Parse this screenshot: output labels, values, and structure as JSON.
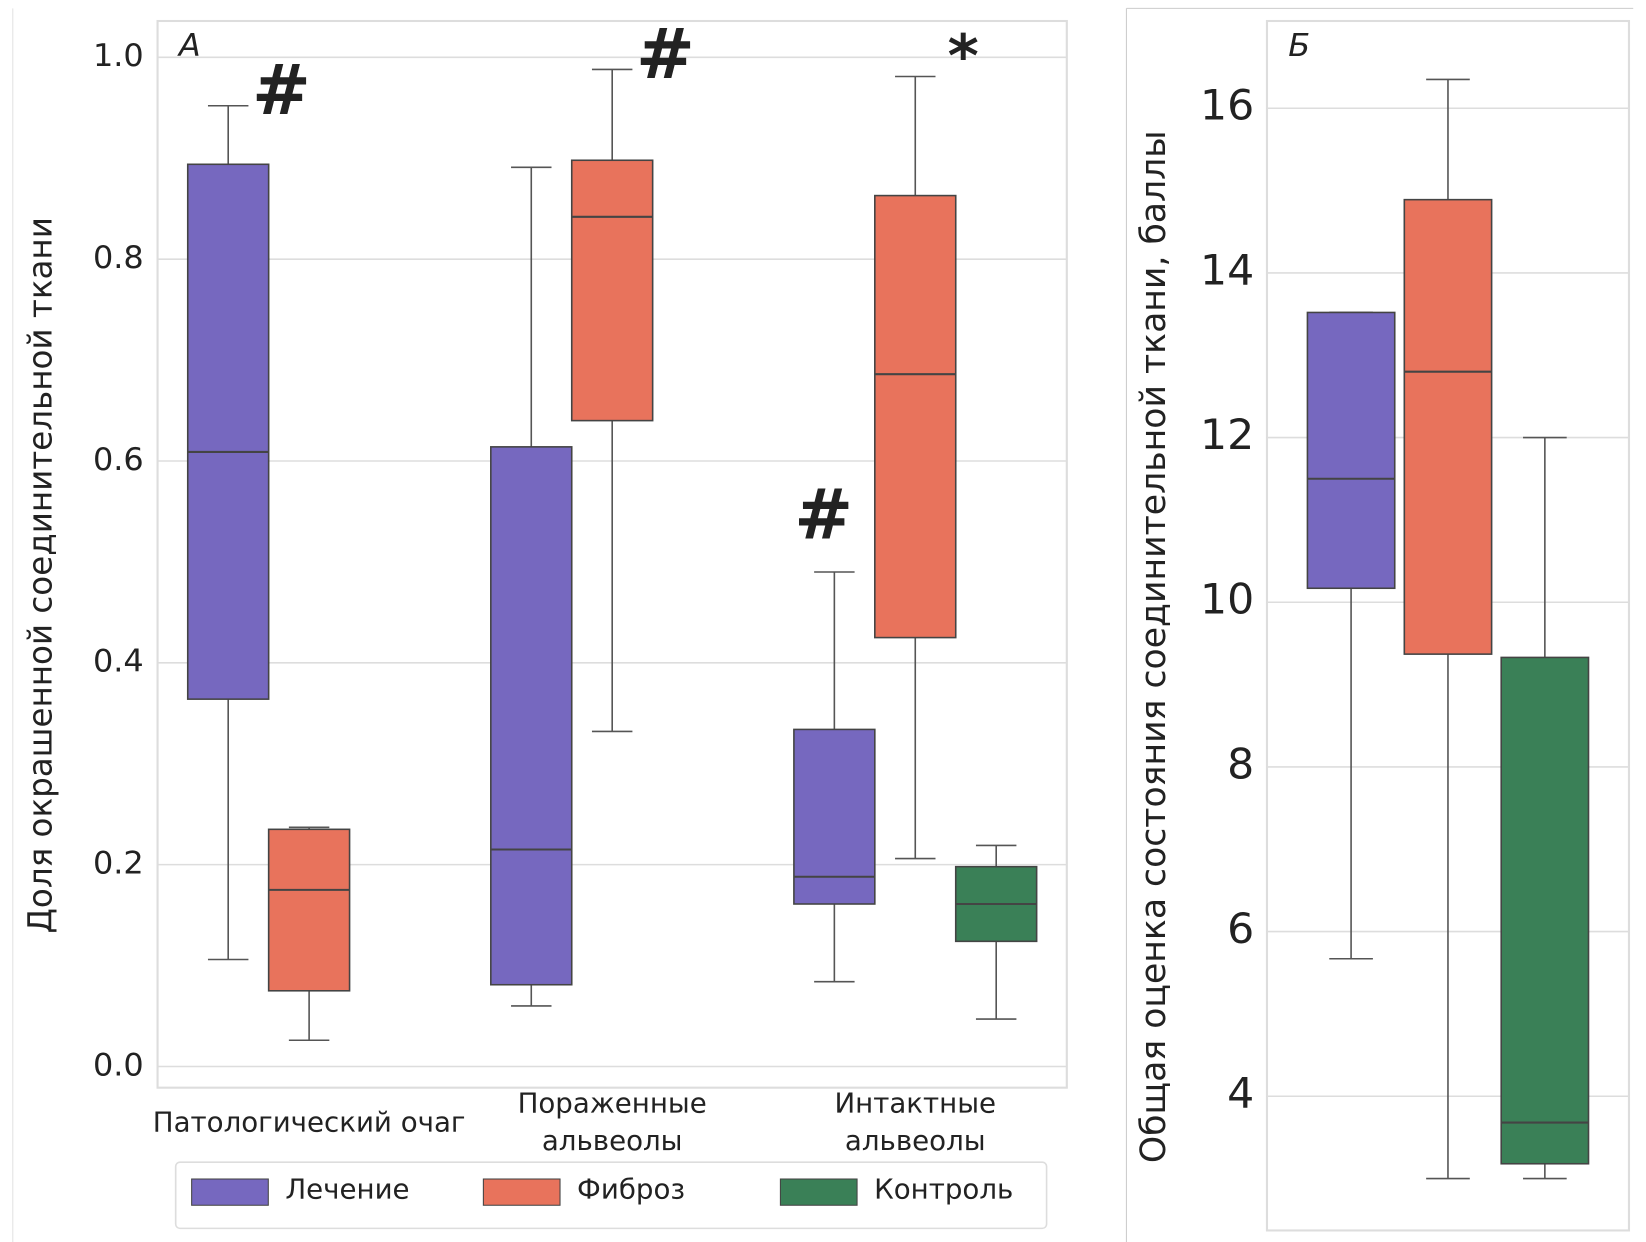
{
  "chart_data": [
    {
      "type": "box",
      "panel": "А",
      "y_label": "Доля окрашенной соединительной ткани",
      "categories": [
        "Патологический очаг",
        "Пораженные\nальвеолы",
        "Интактные\nальвеолы"
      ],
      "series": [
        {
          "name": "Лечение",
          "color": "#7668bf",
          "low": [
            0.106,
            0.06,
            0.084
          ],
          "q1": [
            0.364,
            0.081,
            0.161
          ],
          "median": [
            0.609,
            0.215,
            0.188
          ],
          "q3": [
            0.894,
            0.614,
            0.334
          ],
          "high": [
            0.952,
            0.891,
            0.49
          ]
        },
        {
          "name": "Фиброз",
          "color": "#e8735c",
          "low": [
            0.026,
            0.332,
            0.206
          ],
          "q1": [
            0.075,
            0.64,
            0.425
          ],
          "median": [
            0.175,
            0.842,
            0.686
          ],
          "q3": [
            0.235,
            0.898,
            0.863
          ],
          "high": [
            0.237,
            0.988,
            0.981
          ]
        },
        {
          "name": "Контроль",
          "color": "#3a8057",
          "low": [
            null,
            null,
            0.047
          ],
          "q1": [
            null,
            null,
            0.124
          ],
          "median": [
            null,
            null,
            0.161
          ],
          "q3": [
            null,
            null,
            0.198
          ],
          "high": [
            null,
            null,
            0.219
          ]
        }
      ],
      "annotations": [
        {
          "text": "#",
          "category": 0,
          "series": 0
        },
        {
          "text": "#",
          "category": 1,
          "series": 1
        },
        {
          "text": "#",
          "category": 2,
          "series": 0
        },
        {
          "text": "*",
          "category": 2,
          "series": 1
        }
      ],
      "ylim": [
        -0.021,
        1.036
      ],
      "yticks": [
        {
          "value": 0,
          "label": "0.0"
        },
        0.2,
        0.4,
        0.6,
        0.8,
        {
          "value": 1,
          "label": "1.0"
        }
      ],
      "grid": true
    },
    {
      "type": "box",
      "panel": "Б",
      "y_label": "Общая оценка состояния соединительной ткани, баллы",
      "series": [
        {
          "color": "#7668bf",
          "low": [
            5.67
          ],
          "q1": [
            10.17
          ],
          "median": [
            11.5
          ],
          "q3": [
            13.52
          ],
          "high": [
            13.52
          ]
        },
        {
          "color": "#e8735c",
          "low": [
            3.0
          ],
          "q1": [
            9.37
          ],
          "median": [
            12.8
          ],
          "q3": [
            14.89
          ],
          "high": [
            16.35
          ]
        },
        {
          "color": "#3a8057",
          "low": [
            3.0
          ],
          "q1": [
            3.18
          ],
          "median": [
            3.68
          ],
          "q3": [
            9.33
          ],
          "high": [
            12.0
          ]
        }
      ],
      "ylim": [
        2.37,
        17.06
      ],
      "yticks": [
        4,
        6,
        8,
        10,
        12,
        14,
        16
      ],
      "grid": true
    }
  ]
}
